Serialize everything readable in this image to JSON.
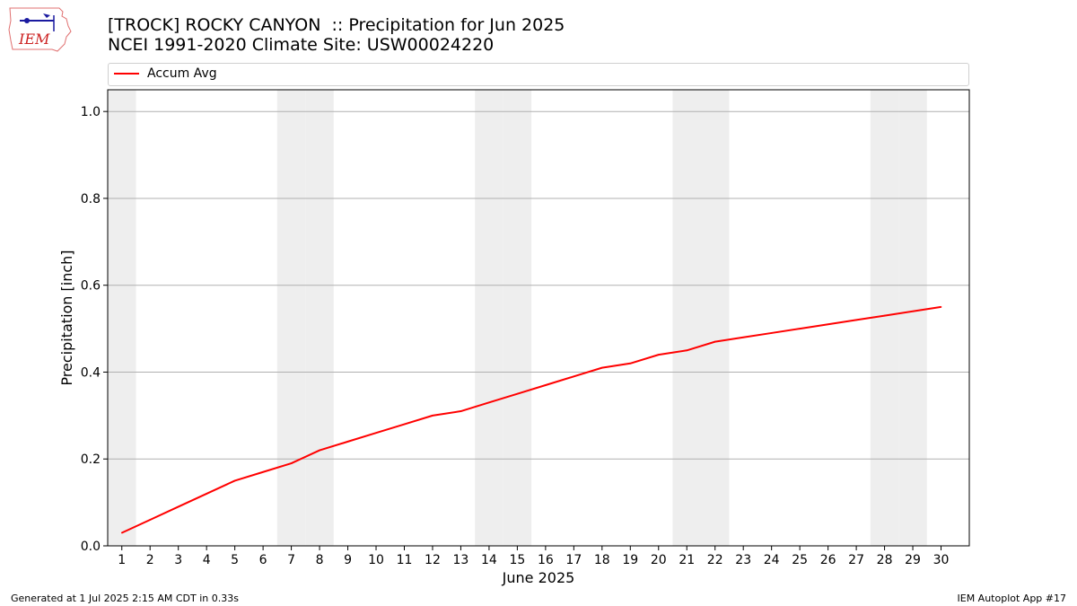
{
  "logo": {
    "text": "IEM"
  },
  "title": {
    "line1": "[TROCK] ROCKY CANYON  :: Precipitation for Jun 2025",
    "line2": "NCEI 1991-2020 Climate Site: USW00024220"
  },
  "footer": {
    "left": "Generated at 1 Jul 2025 2:15 AM CDT in 0.33s",
    "right": "IEM Autoplot App #17"
  },
  "colors": {
    "series": "#ff0000",
    "weekend_band": "#eeeeee",
    "grid": "#b0b0b0"
  },
  "chart_data": {
    "type": "line",
    "xlabel": "June 2025",
    "ylabel": "Precipitation [inch]",
    "xlim": [
      0.5,
      31
    ],
    "ylim": [
      0,
      1.05
    ],
    "x_ticks": [
      1,
      2,
      3,
      4,
      5,
      6,
      7,
      8,
      9,
      10,
      11,
      12,
      13,
      14,
      15,
      16,
      17,
      18,
      19,
      20,
      21,
      22,
      23,
      24,
      25,
      26,
      27,
      28,
      29,
      30
    ],
    "y_ticks": [
      0.0,
      0.2,
      0.4,
      0.6,
      0.8,
      1.0
    ],
    "y_tick_labels": [
      "0.0",
      "0.2",
      "0.4",
      "0.6",
      "0.8",
      "1.0"
    ],
    "grid": "horizontal",
    "legend_placement": "top, above plot",
    "weekend_days": [
      1,
      7,
      8,
      14,
      15,
      21,
      22,
      28,
      29
    ],
    "series": [
      {
        "name": "Accum Avg",
        "color": "#ff0000",
        "x": [
          1,
          2,
          3,
          4,
          5,
          6,
          7,
          8,
          9,
          10,
          11,
          12,
          13,
          14,
          15,
          16,
          17,
          18,
          19,
          20,
          21,
          22,
          23,
          24,
          25,
          26,
          27,
          28,
          29,
          30
        ],
        "values": [
          0.03,
          0.06,
          0.09,
          0.12,
          0.15,
          0.17,
          0.19,
          0.22,
          0.24,
          0.26,
          0.28,
          0.3,
          0.31,
          0.33,
          0.35,
          0.37,
          0.39,
          0.41,
          0.42,
          0.44,
          0.45,
          0.47,
          0.48,
          0.49,
          0.5,
          0.51,
          0.52,
          0.53,
          0.54,
          0.55
        ]
      }
    ]
  }
}
